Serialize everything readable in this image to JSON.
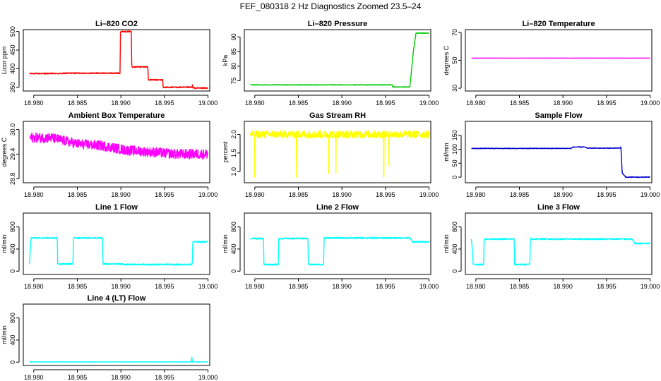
{
  "title": "FEF_080318  2 Hz Diagnostics Zoomed 23.5–24",
  "colors": {
    "red": "#ff0000",
    "green": "#00cc00",
    "magenta": "#ff00ff",
    "yellow": "#ffff00",
    "blue": "#0000cc",
    "cyan": "#00ffff"
  },
  "chart_data": [
    {
      "type": "line",
      "title": "Li–820 CO2",
      "ylabel": "Licor ppm",
      "color": "red",
      "xlim": [
        18.9788,
        19.0002
      ],
      "ylim": [
        340,
        505
      ],
      "xticks": [
        18.98,
        18.985,
        18.99,
        18.995,
        19.0
      ],
      "xtick_labels": [
        "18.980",
        "18.985",
        "18.990",
        "18.995",
        "19.000"
      ],
      "yticks": [
        350,
        400,
        450,
        500
      ],
      "ytick_labels": [
        "350",
        "400",
        "450",
        "500"
      ],
      "noise": 1.5,
      "x": [
        18.9795,
        18.9833,
        18.9838,
        18.9899,
        18.98995,
        18.9912,
        18.99125,
        18.9931,
        18.99315,
        18.9948,
        18.99485,
        18.9982,
        18.99822,
        18.99825,
        19.0
      ],
      "y": [
        387,
        387,
        388,
        388,
        500,
        500,
        405,
        405,
        370,
        370,
        350,
        350,
        362,
        348,
        348
      ]
    },
    {
      "type": "line",
      "title": "Li–820 Pressure",
      "ylabel": "kPa",
      "color": "green",
      "xlim": [
        18.9788,
        19.0002
      ],
      "ylim": [
        71.5,
        92.5
      ],
      "xticks": [
        18.98,
        18.985,
        18.99,
        18.995,
        19.0
      ],
      "xtick_labels": [
        "18.980",
        "18.985",
        "18.990",
        "18.995",
        "19.000"
      ],
      "yticks": [
        75,
        80,
        85,
        90
      ],
      "ytick_labels": [
        "75",
        "80",
        "85",
        "90"
      ],
      "noise": 0.1,
      "x": [
        18.9795,
        18.9958,
        18.99582,
        18.9978,
        18.9982,
        18.9985,
        19.0
      ],
      "y": [
        73.6,
        73.6,
        72.9,
        72.9,
        85,
        91.3,
        91.3
      ]
    },
    {
      "type": "line",
      "title": "Li–820 Temperature",
      "ylabel": "degrees C",
      "color": "magenta",
      "xlim": [
        18.9788,
        19.0002
      ],
      "ylim": [
        28,
        72
      ],
      "xticks": [
        18.98,
        18.985,
        18.99,
        18.995,
        19.0
      ],
      "xtick_labels": [
        "18.980",
        "18.985",
        "18.990",
        "18.995",
        "19.000"
      ],
      "yticks": [
        30,
        50,
        70
      ],
      "ytick_labels": [
        "30",
        "50",
        "70"
      ],
      "noise": 0.05,
      "x": [
        18.9795,
        19.0
      ],
      "y": [
        51.6,
        51.6
      ]
    },
    {
      "type": "line",
      "title": "Ambient Box Temperature",
      "ylabel": "degrees C",
      "color": "magenta",
      "xlim": [
        18.9788,
        19.0002
      ],
      "ylim": [
        28.7,
        30.2
      ],
      "xticks": [
        18.98,
        18.985,
        18.99,
        18.995,
        19.0
      ],
      "xtick_labels": [
        "18.980",
        "18.985",
        "18.990",
        "18.995",
        "19.000"
      ],
      "yticks": [
        28.8,
        29.4,
        30.0
      ],
      "ytick_labels": [
        "28.8",
        "29.4",
        "30.0"
      ],
      "noise": 0.12,
      "x": [
        18.9795,
        18.982,
        18.985,
        18.988,
        18.9905,
        18.9935,
        18.9965,
        19.0
      ],
      "y": [
        29.8,
        29.8,
        29.65,
        29.6,
        29.5,
        29.45,
        29.4,
        29.4
      ]
    },
    {
      "type": "line",
      "title": "Gas Stream RH",
      "ylabel": "percent",
      "color": "yellow",
      "xlim": [
        18.9788,
        19.0002
      ],
      "ylim": [
        0.7,
        2.35
      ],
      "xticks": [
        18.98,
        18.985,
        18.99,
        18.995,
        19.0
      ],
      "xtick_labels": [
        "18.980",
        "18.985",
        "18.990",
        "18.995",
        "19.000"
      ],
      "yticks": [
        1.0,
        1.5,
        2.0
      ],
      "ytick_labels": [
        "1.0",
        "1.5",
        "2.0"
      ],
      "noise": 0.1,
      "spikes_x": [
        18.98,
        18.9848,
        18.9885,
        18.9893,
        18.9948,
        18.9954
      ],
      "spikes_y": [
        0.85,
        0.85,
        0.95,
        0.95,
        0.85,
        1.15
      ],
      "x": [
        18.9795,
        19.0
      ],
      "y": [
        2.0,
        2.0
      ]
    },
    {
      "type": "line",
      "title": "Sample Flow",
      "ylabel": "ml/min",
      "color": "blue",
      "xlim": [
        18.9788,
        19.0002
      ],
      "ylim": [
        -20,
        200
      ],
      "xticks": [
        18.98,
        18.985,
        18.99,
        18.995,
        19.0
      ],
      "xtick_labels": [
        "18.980",
        "18.985",
        "18.990",
        "18.995",
        "19.000"
      ],
      "yticks": [
        0,
        50,
        100,
        150
      ],
      "ytick_labels": [
        "0",
        "50",
        "100",
        "150"
      ],
      "noise": 1.2,
      "x": [
        18.9795,
        18.9909,
        18.9912,
        18.9925,
        18.9928,
        18.99655,
        18.99665,
        18.9968,
        18.9972,
        19.0
      ],
      "y": [
        103,
        103,
        108,
        108,
        104,
        104,
        110,
        15,
        0,
        0
      ]
    },
    {
      "type": "line",
      "title": "Line 1 Flow",
      "ylabel": "ml/min",
      "color": "cyan",
      "xlim": [
        18.9788,
        19.0002
      ],
      "ylim": [
        -60,
        1050
      ],
      "xticks": [
        18.98,
        18.985,
        18.99,
        18.995,
        19.0
      ],
      "xtick_labels": [
        "18.980",
        "18.985",
        "18.990",
        "18.995",
        "19.000"
      ],
      "yticks": [
        0,
        400,
        800
      ],
      "ytick_labels": [
        "0",
        "400",
        "800"
      ],
      "noise": 12,
      "x": [
        18.9795,
        18.9797,
        18.9827,
        18.98275,
        18.9845,
        18.98455,
        18.9879,
        18.98795,
        18.9902,
        18.99025,
        18.9982,
        18.99825,
        19.0
      ],
      "y": [
        130,
        600,
        600,
        130,
        130,
        600,
        600,
        130,
        130,
        120,
        120,
        530,
        530
      ]
    },
    {
      "type": "line",
      "title": "Line 2 Flow",
      "ylabel": "ml/min",
      "color": "cyan",
      "xlim": [
        18.9788,
        19.0002
      ],
      "ylim": [
        -60,
        1050
      ],
      "xticks": [
        18.98,
        18.985,
        18.99,
        18.995,
        19.0
      ],
      "xtick_labels": [
        "18.980",
        "18.985",
        "18.990",
        "18.995",
        "19.000"
      ],
      "yticks": [
        0,
        400,
        800
      ],
      "ytick_labels": [
        "0",
        "400",
        "800"
      ],
      "noise": 12,
      "x": [
        18.9795,
        18.981,
        18.98105,
        18.9827,
        18.98275,
        18.9861,
        18.98615,
        18.9879,
        18.98795,
        18.9978,
        18.9981,
        19.0
      ],
      "y": [
        590,
        590,
        120,
        120,
        590,
        590,
        120,
        120,
        600,
        600,
        530,
        530
      ]
    },
    {
      "type": "line",
      "title": "Line 3 Flow",
      "ylabel": "ml/min",
      "color": "cyan",
      "xlim": [
        18.9788,
        19.0002
      ],
      "ylim": [
        -60,
        1050
      ],
      "xticks": [
        18.98,
        18.985,
        18.99,
        18.995,
        19.0
      ],
      "xtick_labels": [
        "18.980",
        "18.985",
        "18.990",
        "18.995",
        "19.000"
      ],
      "yticks": [
        0,
        400,
        800
      ],
      "ytick_labels": [
        "0",
        "400",
        "800"
      ],
      "noise": 12,
      "x": [
        18.9795,
        18.9797,
        18.9809,
        18.98095,
        18.9844,
        18.98445,
        18.9862,
        18.98625,
        18.9979,
        18.9983,
        19.0
      ],
      "y": [
        590,
        120,
        120,
        580,
        580,
        120,
        120,
        580,
        580,
        500,
        500
      ]
    },
    {
      "type": "line",
      "title": "Line 4 (LT) Flow",
      "ylabel": "ml/min",
      "color": "cyan",
      "xlim": [
        18.9788,
        19.0002
      ],
      "ylim": [
        -60,
        1050
      ],
      "xticks": [
        18.98,
        18.985,
        18.99,
        18.995,
        19.0
      ],
      "xtick_labels": [
        "18.980",
        "18.985",
        "18.990",
        "18.995",
        "19.000"
      ],
      "yticks": [
        0,
        400,
        800
      ],
      "ytick_labels": [
        "0",
        "400",
        "800"
      ],
      "noise": 2,
      "x": [
        18.9795,
        18.9981,
        18.99815,
        18.9982,
        18.99825,
        19.0
      ],
      "y": [
        5,
        5,
        100,
        5,
        5,
        5
      ]
    }
  ]
}
